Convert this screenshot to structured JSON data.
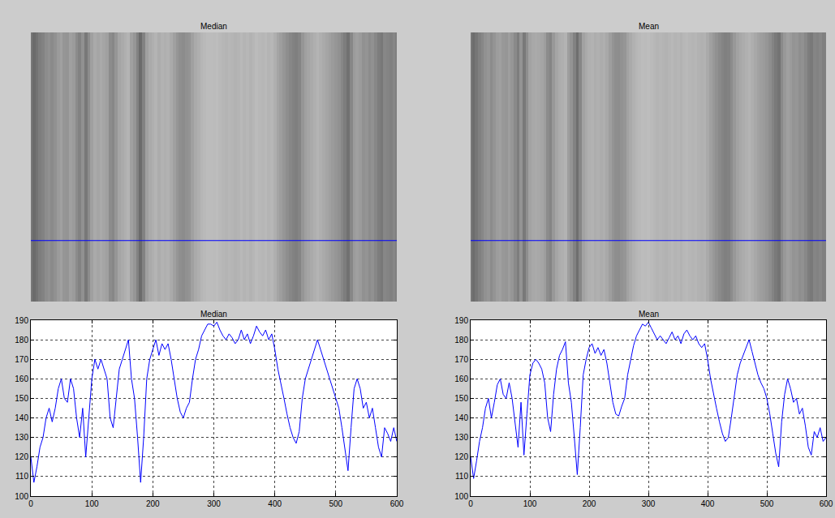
{
  "chart_data": [
    {
      "type": "line",
      "title": "Median",
      "color": "#0000ff",
      "grid": true,
      "x": [
        0,
        5,
        10,
        15,
        20,
        25,
        30,
        35,
        40,
        45,
        50,
        55,
        60,
        65,
        70,
        75,
        80,
        85,
        90,
        95,
        100,
        105,
        110,
        115,
        120,
        125,
        130,
        135,
        140,
        145,
        150,
        155,
        160,
        165,
        170,
        175,
        180,
        185,
        190,
        195,
        200,
        205,
        210,
        215,
        220,
        225,
        230,
        235,
        240,
        245,
        250,
        255,
        260,
        265,
        270,
        275,
        280,
        285,
        290,
        295,
        300,
        305,
        310,
        315,
        320,
        325,
        330,
        335,
        340,
        345,
        350,
        355,
        360,
        365,
        370,
        375,
        380,
        385,
        390,
        395,
        400,
        405,
        410,
        415,
        420,
        425,
        430,
        435,
        440,
        445,
        450,
        455,
        460,
        465,
        470,
        475,
        480,
        485,
        490,
        495,
        500,
        505,
        510,
        515,
        520,
        525,
        530,
        535,
        540,
        545,
        550,
        555,
        560,
        565,
        570,
        575,
        580,
        585,
        590,
        595,
        600
      ],
      "values": [
        120,
        107,
        115,
        125,
        130,
        140,
        145,
        138,
        145,
        155,
        160,
        150,
        148,
        160,
        155,
        140,
        130,
        145,
        120,
        140,
        160,
        170,
        165,
        170,
        165,
        160,
        140,
        135,
        150,
        165,
        170,
        175,
        180,
        160,
        150,
        130,
        107,
        130,
        160,
        170,
        175,
        180,
        172,
        178,
        175,
        178,
        170,
        160,
        150,
        143,
        140,
        145,
        148,
        160,
        170,
        175,
        182,
        185,
        188,
        188,
        187,
        189,
        185,
        182,
        180,
        183,
        181,
        178,
        180,
        185,
        180,
        183,
        178,
        182,
        187,
        184,
        182,
        185,
        180,
        183,
        175,
        165,
        158,
        150,
        142,
        135,
        130,
        127,
        133,
        150,
        160,
        165,
        170,
        175,
        180,
        175,
        170,
        165,
        160,
        155,
        150,
        145,
        135,
        125,
        113,
        135,
        155,
        160,
        155,
        145,
        148,
        140,
        145,
        135,
        125,
        120,
        135,
        132,
        128,
        135,
        128
      ],
      "xlim": [
        0,
        600
      ],
      "ylim": [
        100,
        190
      ],
      "xticks": [
        0,
        100,
        200,
        300,
        400,
        500,
        600
      ],
      "yticks": [
        100,
        110,
        120,
        130,
        140,
        150,
        160,
        170,
        180,
        190
      ],
      "image": {
        "title": "Median",
        "xlim": [
          0,
          600
        ],
        "ylim": [
          0,
          450
        ],
        "profile_row": 348,
        "tick_labels": false
      }
    },
    {
      "type": "line",
      "title": "Mean",
      "color": "#0000ff",
      "grid": true,
      "x": [
        0,
        5,
        10,
        15,
        20,
        25,
        30,
        35,
        40,
        45,
        50,
        55,
        60,
        65,
        70,
        75,
        80,
        85,
        90,
        95,
        100,
        105,
        110,
        115,
        120,
        125,
        130,
        135,
        140,
        145,
        150,
        155,
        160,
        165,
        170,
        175,
        180,
        185,
        190,
        195,
        200,
        205,
        210,
        215,
        220,
        225,
        230,
        235,
        240,
        245,
        250,
        255,
        260,
        265,
        270,
        275,
        280,
        285,
        290,
        295,
        300,
        305,
        310,
        315,
        320,
        325,
        330,
        335,
        340,
        345,
        350,
        355,
        360,
        365,
        370,
        375,
        380,
        385,
        390,
        395,
        400,
        405,
        410,
        415,
        420,
        425,
        430,
        435,
        440,
        445,
        450,
        455,
        460,
        465,
        470,
        475,
        480,
        485,
        490,
        495,
        500,
        505,
        510,
        515,
        520,
        525,
        530,
        535,
        540,
        545,
        550,
        555,
        560,
        565,
        570,
        575,
        580,
        585,
        590,
        595,
        600
      ],
      "values": [
        120,
        109,
        118,
        128,
        135,
        145,
        150,
        140,
        148,
        157,
        160,
        152,
        150,
        158,
        150,
        138,
        125,
        148,
        121,
        142,
        162,
        168,
        170,
        168,
        165,
        158,
        140,
        133,
        152,
        165,
        172,
        175,
        179,
        158,
        148,
        130,
        111,
        135,
        162,
        170,
        176,
        178,
        173,
        176,
        172,
        175,
        168,
        158,
        148,
        142,
        141,
        146,
        150,
        162,
        170,
        177,
        182,
        185,
        188,
        187,
        189,
        186,
        183,
        180,
        182,
        180,
        178,
        181,
        184,
        180,
        182,
        178,
        183,
        185,
        182,
        180,
        182,
        178,
        176,
        178,
        170,
        160,
        152,
        145,
        138,
        132,
        128,
        130,
        140,
        152,
        162,
        168,
        172,
        176,
        180,
        174,
        168,
        162,
        158,
        155,
        150,
        142,
        132,
        122,
        115,
        138,
        152,
        160,
        155,
        148,
        150,
        142,
        145,
        136,
        125,
        121,
        133,
        130,
        135,
        128,
        130
      ],
      "xlim": [
        0,
        600
      ],
      "ylim": [
        100,
        190
      ],
      "xticks": [
        0,
        100,
        200,
        300,
        400,
        500,
        600
      ],
      "yticks": [
        100,
        110,
        120,
        130,
        140,
        150,
        160,
        170,
        180,
        190
      ],
      "image": {
        "title": "Mean",
        "xlim": [
          0,
          600
        ],
        "ylim": [
          0,
          450
        ],
        "profile_row": 348,
        "tick_labels": false
      }
    }
  ]
}
